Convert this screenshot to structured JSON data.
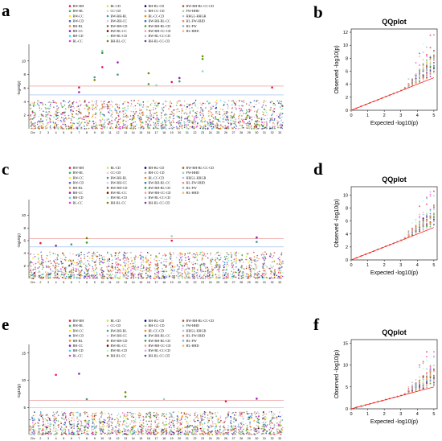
{
  "figure": {
    "panel_labels": [
      "a",
      "b",
      "c",
      "d",
      "e",
      "f"
    ]
  },
  "chart_data": [
    {
      "panel": "a",
      "type": "scatter",
      "subtype": "manhattan",
      "ylabel": "-log10(p)",
      "ylim": [
        0,
        12
      ],
      "yticks": [
        2,
        4,
        6,
        8,
        10
      ],
      "xlabel": "Chr",
      "chromosomes": [
        "Chr",
        "2",
        "3",
        "4",
        "5",
        "6",
        "7",
        "8",
        "9",
        "10",
        "11",
        "12",
        "13",
        "14",
        "15",
        "16",
        "17",
        "18",
        "19",
        "20",
        "21",
        "22",
        "23",
        "24",
        "25",
        "26",
        "27",
        "28",
        "29",
        "30",
        "31",
        "32",
        "33"
      ],
      "threshold_lines": [
        {
          "value": 6.3,
          "color": "#e88a8a"
        },
        {
          "value": 5.0,
          "color": "#8fb7e8"
        }
      ],
      "legend": [
        "BW-BH",
        "BW-BL",
        "BW-CC",
        "BW-CD",
        "BH-BL",
        "BH-CC",
        "BH-CD",
        "BL-CC",
        "BL-CD",
        "CC-CD",
        "BW-BH-BL",
        "BW-BH-CC",
        "BW-BH-CD",
        "BW-BL-CC",
        "BW-BL-CD",
        "BH-BL-CC",
        "BH-BL-CD",
        "BH-CC-CD",
        "BL-CC-CD",
        "BW-BH-BL-CC",
        "BW-BH-BL-CD",
        "BW-BH-CC-CD",
        "BW-BL-CC-CD",
        "BH-BL-CC-CD",
        "BW-BH-BL-CC-CD",
        "FW-HHD",
        "HHGL-HHGR",
        "HL-FW-HHD",
        "HL-FW",
        "HL-HHD"
      ],
      "peaks": [
        {
          "chr": "7",
          "y": 6.1
        },
        {
          "chr": "7",
          "y": 5.4
        },
        {
          "chr": "9",
          "y": 7.6
        },
        {
          "chr": "9",
          "y": 7.2
        },
        {
          "chr": "10",
          "y": 11.2
        },
        {
          "chr": "10",
          "y": 11.5
        },
        {
          "chr": "10",
          "y": 9.1
        },
        {
          "chr": "12",
          "y": 9.8
        },
        {
          "chr": "12",
          "y": 8.0
        },
        {
          "chr": "16",
          "y": 8.2
        },
        {
          "chr": "16",
          "y": 6.6
        },
        {
          "chr": "17",
          "y": 6.4
        },
        {
          "chr": "19",
          "y": 6.9
        },
        {
          "chr": "20",
          "y": 7.5
        },
        {
          "chr": "20",
          "y": 7.0
        },
        {
          "chr": "23",
          "y": 10.7
        },
        {
          "chr": "23",
          "y": 10.3
        },
        {
          "chr": "23",
          "y": 8.5
        },
        {
          "chr": "32",
          "y": 6.1
        }
      ]
    },
    {
      "panel": "b",
      "type": "scatter",
      "subtype": "qq",
      "title": "QQplot",
      "xlabel": "Expected -log10(p)",
      "ylabel": "Observed -log10(p)",
      "xlim": [
        0,
        5.2
      ],
      "ylim": [
        0,
        12.5
      ],
      "xticks": [
        0,
        1,
        2,
        3,
        4,
        5
      ],
      "yticks": [
        0,
        2,
        4,
        6,
        8,
        10,
        12
      ],
      "max_observed": 11.6
    },
    {
      "panel": "c",
      "type": "scatter",
      "subtype": "manhattan",
      "ylabel": "-log10(p)",
      "ylim": [
        0,
        12
      ],
      "yticks": [
        2,
        4,
        6,
        8,
        10
      ],
      "xlabel": "Chr",
      "chromosomes": [
        "Chr",
        "2",
        "3",
        "4",
        "5",
        "6",
        "7",
        "8",
        "9",
        "10",
        "11",
        "12",
        "13",
        "14",
        "15",
        "16",
        "17",
        "18",
        "19",
        "20",
        "21",
        "22",
        "23",
        "24",
        "25",
        "26",
        "27",
        "28",
        "29",
        "30",
        "31",
        "32",
        "33"
      ],
      "threshold_lines": [
        {
          "value": 6.3,
          "color": "#e88a8a"
        },
        {
          "value": 5.0,
          "color": "#8fb7e8"
        }
      ],
      "legend": [
        "BW-BH",
        "BW-BL",
        "BW-CC",
        "BW-CD",
        "BH-BL",
        "BH-CC",
        "BH-CD",
        "BL-CC",
        "BL-CD",
        "CC-CD",
        "BW-BH-BL",
        "BW-BH-CC",
        "BW-BH-CD",
        "BW-BL-CC",
        "BW-BL-CD",
        "BH-BL-CC",
        "BH-BL-CD",
        "BH-CC-CD",
        "BL-CC-CD",
        "BW-BH-BL-CC",
        "BW-BH-BL-CD",
        "BW-BH-CC-CD",
        "BW-BL-CC-CD",
        "BH-BL-CC-CD",
        "BW-BH-BL-CC-CD",
        "FW-HHD",
        "HHGL-HHGR",
        "HL-FW-HHD",
        "HL-FW",
        "HL-HHD"
      ],
      "peaks": [
        {
          "chr": "2",
          "y": 5.6
        },
        {
          "chr": "4",
          "y": 5.2
        },
        {
          "chr": "6",
          "y": 5.4
        },
        {
          "chr": "8",
          "y": 6.4
        },
        {
          "chr": "8",
          "y": 5.7
        },
        {
          "chr": "19",
          "y": 6.7
        },
        {
          "chr": "19",
          "y": 6.0
        },
        {
          "chr": "30",
          "y": 6.5
        },
        {
          "chr": "30",
          "y": 5.8
        }
      ]
    },
    {
      "panel": "d",
      "type": "scatter",
      "subtype": "qq",
      "title": "QQplot",
      "xlabel": "Expected -log10(p)",
      "ylabel": "Observed -log10(p)",
      "xlim": [
        0,
        5.2
      ],
      "ylim": [
        0,
        11.3
      ],
      "xticks": [
        0,
        1,
        2,
        3,
        4,
        5
      ],
      "yticks": [
        0,
        2,
        4,
        6,
        8,
        10
      ],
      "max_observed": 10.6
    },
    {
      "panel": "e",
      "type": "scatter",
      "subtype": "manhattan",
      "ylabel": "-log10(p)",
      "ylim": [
        0,
        16
      ],
      "yticks": [
        5,
        10,
        15
      ],
      "xlabel": "Chr",
      "chromosomes": [
        "Chr",
        "2",
        "3",
        "4",
        "5",
        "6",
        "7",
        "8",
        "9",
        "10",
        "11",
        "12",
        "13",
        "14",
        "15",
        "16",
        "17",
        "18",
        "19",
        "20",
        "21",
        "22",
        "23",
        "24",
        "25",
        "26",
        "27",
        "28",
        "29",
        "30",
        "31",
        "32",
        "33"
      ],
      "threshold_lines": [
        {
          "value": 6.3,
          "color": "#e88a8a"
        },
        {
          "value": 5.0,
          "color": "#8fb7e8"
        }
      ],
      "legend": [
        "BW-BH",
        "BW-BL",
        "BW-CC",
        "BW-CD",
        "BH-BL",
        "BH-CC",
        "BH-CD",
        "BL-CC",
        "BL-CD",
        "CC-CD",
        "BW-BH-BL",
        "BW-BH-CC",
        "BW-BH-CD",
        "BW-BL-CC",
        "BW-BL-CD",
        "BH-BL-CC",
        "BH-BL-CD",
        "BH-CC-CD",
        "BL-CC-CD",
        "BW-BH-BL-CC",
        "BW-BH-BL-CD",
        "BW-BH-CC-CD",
        "BW-BL-CC-CD",
        "BH-BL-CC-CD",
        "BW-BH-BL-CC-CD",
        "FW-HHD",
        "HHGL-HHGR",
        "HL-FW-HHD",
        "HL-FW",
        "HL-HHD"
      ],
      "peaks": [
        {
          "chr": "4",
          "y": 11.0
        },
        {
          "chr": "7",
          "y": 11.2
        },
        {
          "chr": "8",
          "y": 6.5
        },
        {
          "chr": "13",
          "y": 7.8
        },
        {
          "chr": "13",
          "y": 7.0
        },
        {
          "chr": "18",
          "y": 6.5
        },
        {
          "chr": "26",
          "y": 6.1
        },
        {
          "chr": "30",
          "y": 6.6
        }
      ]
    },
    {
      "panel": "f",
      "type": "scatter",
      "subtype": "qq",
      "title": "QQplot",
      "xlabel": "Expected -log10(p)",
      "ylabel": "Observed -log10(p)",
      "xlim": [
        0,
        5.2
      ],
      "ylim": [
        0,
        15.8
      ],
      "xticks": [
        0,
        1,
        2,
        3,
        4,
        5
      ],
      "yticks": [
        0,
        5,
        10,
        15
      ],
      "max_observed": 13.0
    }
  ],
  "colors": {
    "palette": [
      "#e6194b",
      "#3cb44b",
      "#ffe119",
      "#4363d8",
      "#f58231",
      "#911eb4",
      "#42d4f4",
      "#f032e6",
      "#bfef45",
      "#fabed4",
      "#469990",
      "#dcbeff",
      "#9a6324",
      "#800000",
      "#aaffc3",
      "#808000",
      "#000075",
      "#a9a9a9",
      "#ff7f00",
      "#1f78b4",
      "#33a02c",
      "#fb9a99",
      "#cab2d6",
      "#6a3d9a",
      "#b15928",
      "#8dd3c7",
      "#bebada",
      "#fb8072",
      "#80b1d3",
      "#fdb462"
    ],
    "threshold_upper": "#e88a8a",
    "threshold_lower": "#8fb7e8",
    "qq_diagonal": "#ff0000"
  }
}
